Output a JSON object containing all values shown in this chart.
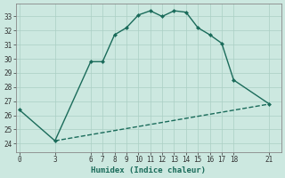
{
  "xlabel": "Humidex (Indice chaleur)",
  "bg_color": "#cce8e0",
  "line_color": "#1a6b5a",
  "xticks": [
    0,
    3,
    6,
    7,
    8,
    9,
    10,
    11,
    12,
    13,
    14,
    15,
    16,
    17,
    18,
    21
  ],
  "yticks": [
    24,
    25,
    26,
    27,
    28,
    29,
    30,
    31,
    32,
    33
  ],
  "ylim": [
    23.4,
    33.9
  ],
  "xlim": [
    -0.3,
    22.0
  ],
  "line1_x": [
    0,
    3,
    6,
    7,
    8,
    9,
    10,
    11,
    12,
    13,
    14,
    15,
    16,
    17,
    18,
    21
  ],
  "line1_y": [
    26.4,
    24.2,
    29.8,
    29.8,
    31.7,
    32.2,
    33.1,
    33.4,
    33.0,
    33.4,
    33.3,
    32.2,
    31.7,
    31.1,
    28.5,
    26.8
  ],
  "line2_x": [
    3,
    21
  ],
  "line2_y": [
    24.2,
    26.8
  ],
  "grid_color": "#aacfc4",
  "marker_size": 2.5,
  "linewidth": 1.0,
  "tick_fontsize": 5.5,
  "xlabel_fontsize": 6.5
}
